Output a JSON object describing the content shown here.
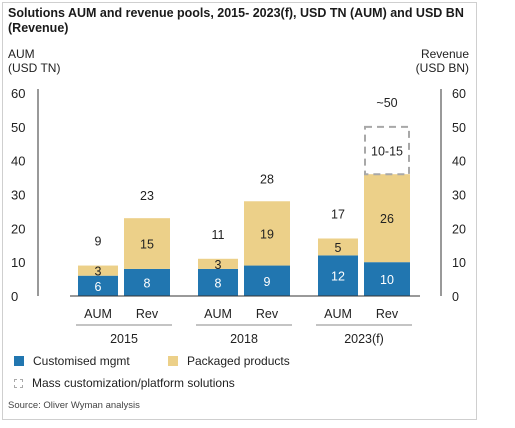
{
  "chart_data": {
    "type": "bar",
    "stacked": true,
    "title": "Solutions AUM and revenue pools, 2015- 2023(f), USD TN (AUM) and USD BN (Revenue)",
    "left_axis_label": [
      "AUM",
      "(USD TN)"
    ],
    "right_axis_label": [
      "Revenue",
      "(USD BN)"
    ],
    "ylim": [
      0,
      60
    ],
    "left_ticks": [
      "0",
      "10",
      "20",
      "30",
      "40",
      "50",
      "60"
    ],
    "right_ticks": [
      "0",
      "10",
      "20",
      "30",
      "40",
      "50",
      "60"
    ],
    "groups": [
      {
        "name": "2015",
        "bars": [
          {
            "label": "AUM",
            "segments": [
              6,
              3
            ],
            "segment_labels": [
              "6",
              "3"
            ],
            "total_label": "9"
          },
          {
            "label": "Rev",
            "segments": [
              8,
              15
            ],
            "segment_labels": [
              "8",
              "15"
            ],
            "total_label": "23"
          }
        ]
      },
      {
        "name": "2018",
        "bars": [
          {
            "label": "AUM",
            "segments": [
              8,
              3
            ],
            "segment_labels": [
              "8",
              "3"
            ],
            "total_label": "11"
          },
          {
            "label": "Rev",
            "segments": [
              9,
              19
            ],
            "segment_labels": [
              "9",
              "19"
            ],
            "total_label": "28"
          }
        ]
      },
      {
        "name": "2023(f)",
        "bars": [
          {
            "label": "AUM",
            "segments": [
              12,
              5
            ],
            "segment_labels": [
              "12",
              "5"
            ],
            "total_label": "17"
          },
          {
            "label": "Rev",
            "segments": [
              10,
              26
            ],
            "segment_labels": [
              "10",
              "26"
            ],
            "total_label": "~50",
            "dashed": {
              "from": 36,
              "to": 50,
              "label": "10-15"
            }
          }
        ]
      }
    ],
    "series": [
      {
        "name": "Customised mgmt",
        "color": "#2176b0"
      },
      {
        "name": "Packaged products",
        "color": "#ecd089"
      },
      {
        "name": "Mass customization/platform solutions",
        "color": "#a8a8a8",
        "style": "dashed"
      }
    ],
    "source": "Source: Oliver Wyman analysis"
  }
}
